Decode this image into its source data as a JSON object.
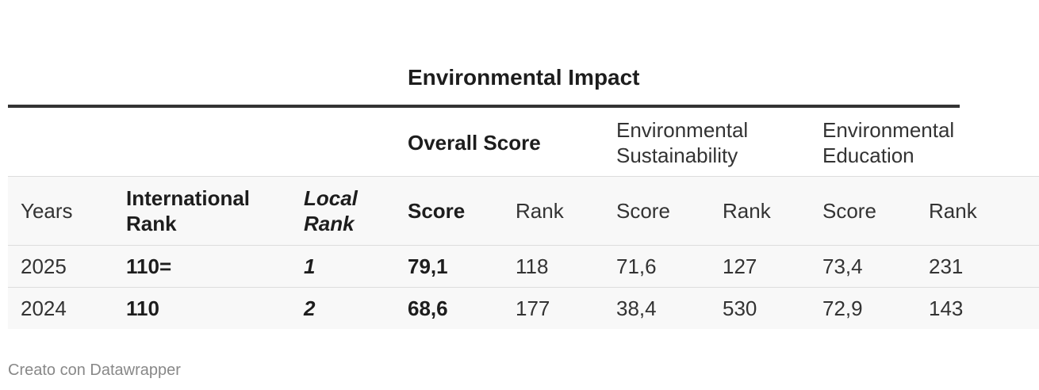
{
  "chart_data": {
    "type": "table",
    "title": "Environmental Impact",
    "column_groups": [
      {
        "label": "Overall Score",
        "bold": true
      },
      {
        "label": "Environmental Sustainability",
        "bold": false
      },
      {
        "label": "Environmental Education",
        "bold": false
      }
    ],
    "columns": [
      "Years",
      "International Rank",
      "Local Rank",
      "Score",
      "Rank",
      "Score",
      "Rank",
      "Score",
      "Rank"
    ],
    "rows": [
      [
        "2025",
        "110=",
        "1",
        "79,1",
        "118",
        "71,6",
        "127",
        "73,4",
        "231"
      ],
      [
        "2024",
        "110",
        "2",
        "68,6",
        "177",
        "38,4",
        "530",
        "72,9",
        "143"
      ]
    ]
  },
  "labels": {
    "group_overall": "Overall Score",
    "group_sust_1": "Environmental",
    "group_sust_2": "Sustainability",
    "group_edu_1": "Environmental",
    "group_edu_2": "Education",
    "col_intl_1": "International",
    "col_intl_2": "Rank",
    "col_local_1": "Local",
    "col_local_2": "Rank"
  },
  "footer": "Creato con Datawrapper"
}
